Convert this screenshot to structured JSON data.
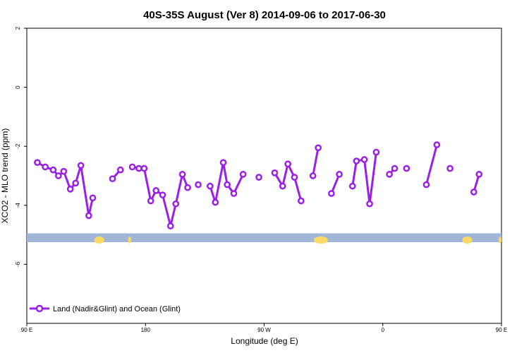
{
  "chart_data": {
    "type": "line",
    "title": "40S-35S August (Ver 8)   2014-09-06 to 2017-06-30",
    "xlabel": "Longitude (deg E)",
    "ylabel": "XCO2 - MLO trend (ppm)",
    "xlim": [
      90,
      450
    ],
    "ylim": [
      -8,
      2
    ],
    "x_ticks": [
      {
        "value": 90,
        "label": "90 E"
      },
      {
        "value": 180,
        "label": "180"
      },
      {
        "value": 270,
        "label": "90 W"
      },
      {
        "value": 360,
        "label": "0"
      },
      {
        "value": 450,
        "label": "90 E"
      },
      {
        "value": 540,
        "label": "180"
      }
    ],
    "y_ticks": [
      {
        "value": 2,
        "label": "2"
      },
      {
        "value": 0,
        "label": "0"
      },
      {
        "value": -2,
        "label": "-2"
      },
      {
        "value": -4,
        "label": "-4"
      },
      {
        "value": -6,
        "label": "-6"
      }
    ],
    "legend": {
      "position": "bottom-left"
    },
    "series": [
      {
        "name": "Land (Nadir&Glint) and Ocean (Glint)",
        "color": "#9b1fe8",
        "segments": [
          [
            [
              98,
              -2.55
            ],
            [
              104,
              -2.7
            ],
            [
              110,
              -2.8
            ],
            [
              114,
              -3.0
            ],
            [
              118,
              -2.85
            ],
            [
              123,
              -3.45
            ],
            [
              127,
              -3.25
            ],
            [
              131,
              -2.65
            ],
            [
              137,
              -4.35
            ],
            [
              140,
              -3.75
            ]
          ],
          [
            [
              155,
              -3.1
            ],
            [
              161,
              -2.8
            ]
          ],
          [
            [
              170,
              -2.7
            ],
            [
              175,
              -2.75
            ],
            [
              179,
              -2.75
            ],
            [
              184,
              -3.85
            ],
            [
              188,
              -3.5
            ],
            [
              193,
              -3.65
            ],
            [
              199,
              -4.7
            ],
            [
              203,
              -3.95
            ],
            [
              208,
              -2.95
            ],
            [
              212,
              -3.4
            ]
          ],
          [
            [
              220,
              -3.3
            ]
          ],
          [
            [
              229,
              -3.35
            ],
            [
              233,
              -3.9
            ],
            [
              239,
              -2.55
            ],
            [
              242,
              -3.3
            ],
            [
              247,
              -3.6
            ],
            [
              254,
              -2.95
            ]
          ],
          [
            [
              266,
              -3.05
            ]
          ],
          [
            [
              278,
              -2.9
            ],
            [
              284,
              -3.35
            ],
            [
              288,
              -2.6
            ],
            [
              293,
              -3.05
            ],
            [
              298,
              -3.85
            ]
          ],
          [
            [
              307,
              -3.0
            ],
            [
              311,
              -2.05
            ]
          ],
          [
            [
              321,
              -3.6
            ],
            [
              327,
              -2.95
            ]
          ],
          [
            [
              337,
              -3.35
            ],
            [
              340,
              -2.5
            ],
            [
              346,
              -2.45
            ],
            [
              350,
              -3.95
            ],
            [
              355,
              -2.2
            ]
          ],
          [
            [
              365,
              -2.95
            ],
            [
              369,
              -2.75
            ]
          ],
          [
            [
              378,
              -2.75
            ]
          ],
          [
            [
              393,
              -3.3
            ],
            [
              401,
              -1.95
            ]
          ],
          [
            [
              411,
              -2.75
            ]
          ],
          [
            [
              429,
              -3.55
            ],
            [
              433,
              -2.95
            ]
          ]
        ]
      }
    ],
    "reference_band": {
      "y_range": [
        -5.25,
        -4.95
      ],
      "color": "#9fb6d9",
      "land_color": "#ffd966"
    }
  }
}
